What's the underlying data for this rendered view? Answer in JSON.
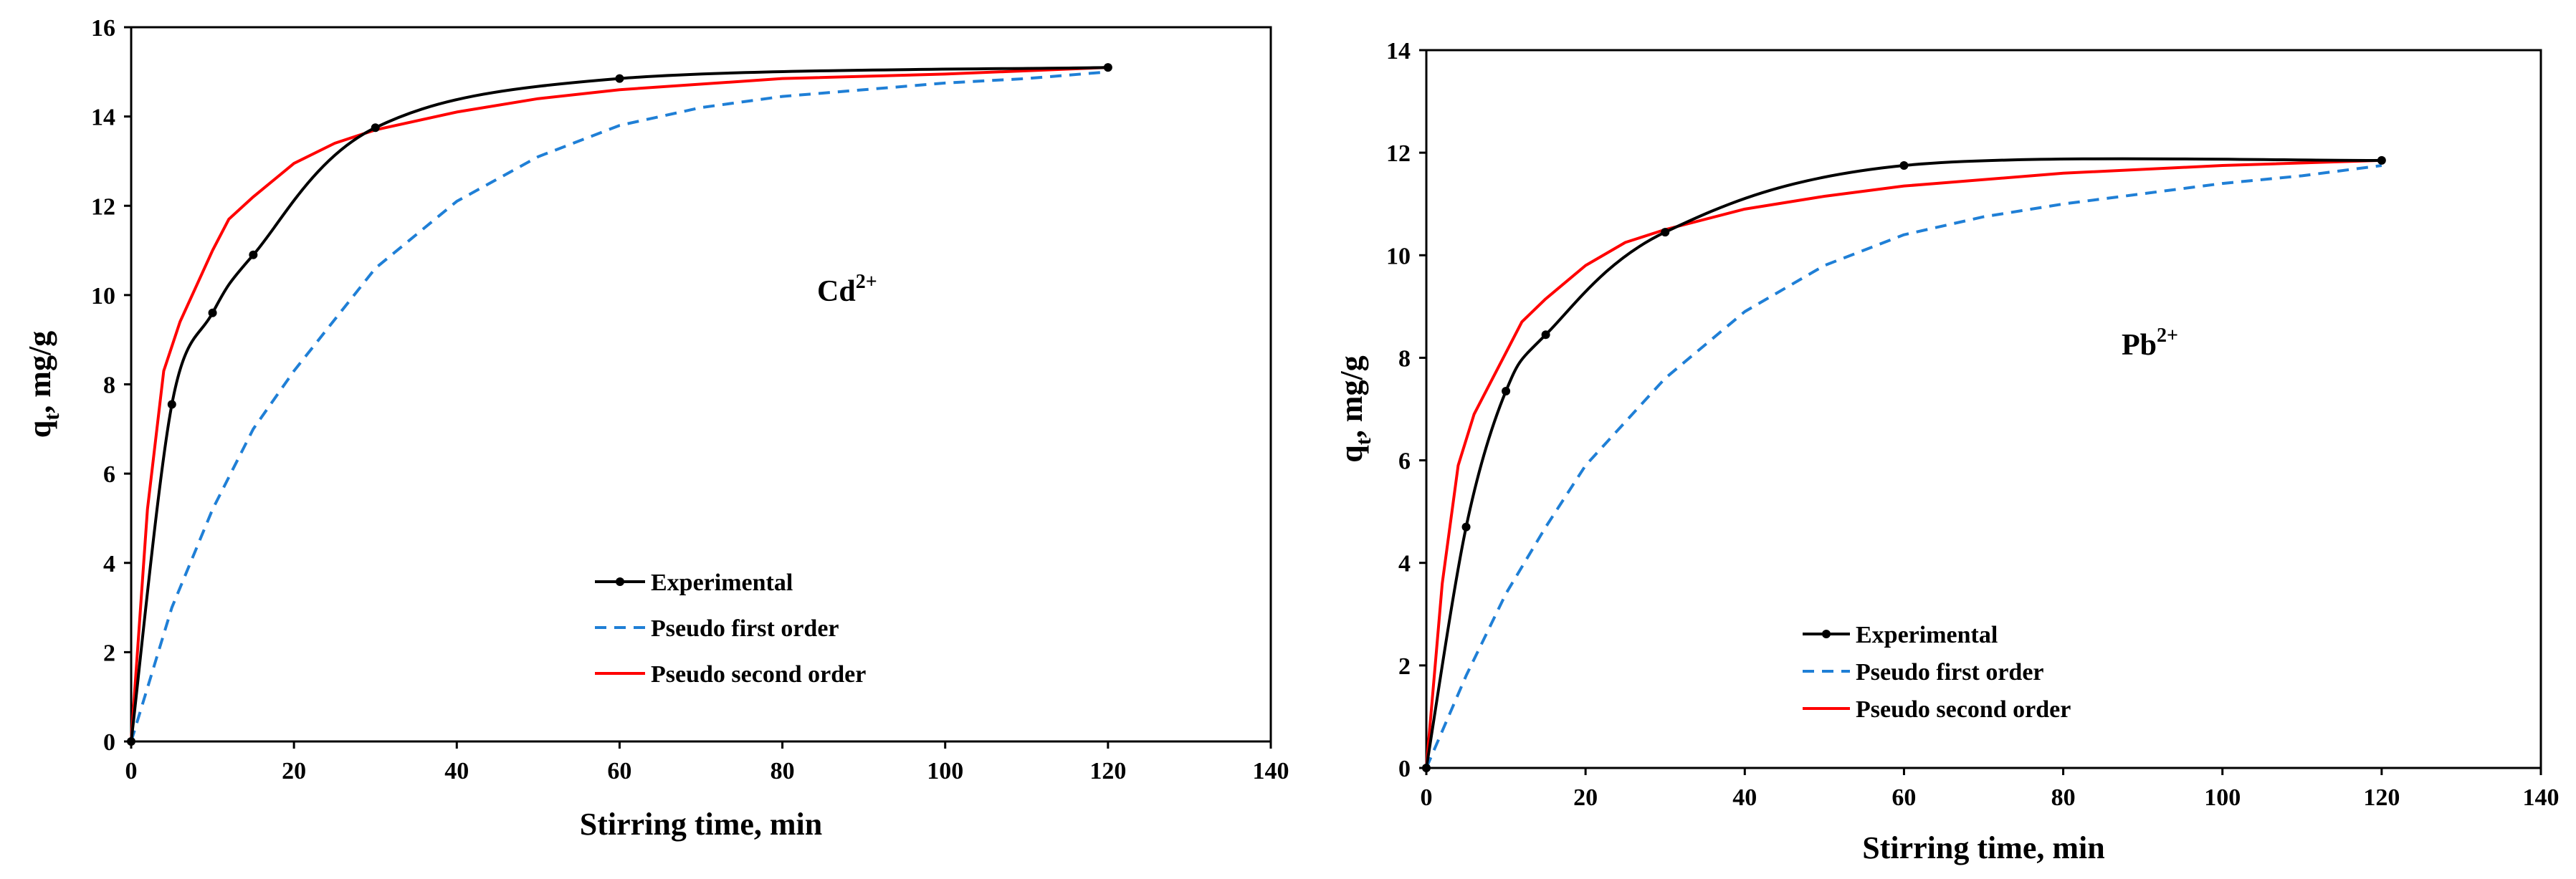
{
  "chart_data": [
    {
      "type": "line",
      "annotation": {
        "base": "Cd",
        "sup": "2+"
      },
      "xlabel": "Stirring time, min",
      "ylabel": {
        "base": "q",
        "sub": "t",
        "rest": ", mg/g"
      },
      "xlim": [
        0,
        140
      ],
      "ylim": [
        0,
        16
      ],
      "xticks": [
        "0",
        "20",
        "40",
        "60",
        "80",
        "100",
        "120",
        "140"
      ],
      "yticks": [
        "0",
        "2",
        "4",
        "6",
        "8",
        "10",
        "12",
        "14",
        "16"
      ],
      "legend_position": "lower-center",
      "series": [
        {
          "name": "Experimental",
          "color": "#000000",
          "style": "solid",
          "markers": true,
          "x": [
            0,
            5,
            10,
            15,
            30,
            60,
            120
          ],
          "y": [
            0,
            7.55,
            9.6,
            10.9,
            13.75,
            14.85,
            15.1
          ]
        },
        {
          "name": "Pseudo first order",
          "color": "#1f7fd6",
          "style": "dashed",
          "markers": false,
          "x": [
            0,
            5,
            10,
            15,
            20,
            30,
            40,
            50,
            60,
            70,
            80,
            90,
            100,
            110,
            120
          ],
          "y": [
            0,
            3.0,
            5.2,
            7.0,
            8.3,
            10.6,
            12.1,
            13.1,
            13.8,
            14.2,
            14.45,
            14.6,
            14.75,
            14.85,
            15.0
          ]
        },
        {
          "name": "Pseudo second order",
          "color": "#ff0000",
          "style": "solid",
          "markers": false,
          "x": [
            0,
            2,
            4,
            6,
            8,
            10,
            12,
            15,
            20,
            25,
            30,
            40,
            50,
            60,
            80,
            100,
            120
          ],
          "y": [
            0,
            5.2,
            8.3,
            9.4,
            10.2,
            11.0,
            11.7,
            12.2,
            12.95,
            13.4,
            13.7,
            14.1,
            14.4,
            14.6,
            14.85,
            14.95,
            15.1
          ]
        }
      ]
    },
    {
      "type": "line",
      "annotation": {
        "base": "Pb",
        "sup": "2+"
      },
      "xlabel": "Stirring time, min",
      "ylabel": {
        "base": "q",
        "sub": "t",
        "rest": ", mg/g"
      },
      "xlim": [
        0,
        140
      ],
      "ylim": [
        0,
        14
      ],
      "xticks": [
        "0",
        "20",
        "40",
        "60",
        "80",
        "100",
        "120",
        "140"
      ],
      "yticks": [
        "0",
        "2",
        "4",
        "6",
        "8",
        "10",
        "12",
        "14"
      ],
      "legend_position": "lower-left",
      "series": [
        {
          "name": "Experimental",
          "color": "#000000",
          "style": "solid",
          "markers": true,
          "x": [
            0,
            5,
            10,
            15,
            30,
            60,
            120
          ],
          "y": [
            0,
            4.7,
            7.35,
            8.45,
            10.45,
            11.75,
            11.85
          ]
        },
        {
          "name": "Pseudo first order",
          "color": "#1f7fd6",
          "style": "dashed",
          "markers": false,
          "x": [
            0,
            5,
            10,
            15,
            20,
            30,
            40,
            50,
            60,
            70,
            80,
            90,
            100,
            110,
            120
          ],
          "y": [
            0,
            1.8,
            3.4,
            4.7,
            5.9,
            7.6,
            8.9,
            9.8,
            10.4,
            10.75,
            11.0,
            11.2,
            11.4,
            11.55,
            11.75
          ]
        },
        {
          "name": "Pseudo second order",
          "color": "#ff0000",
          "style": "solid",
          "markers": false,
          "x": [
            0,
            2,
            4,
            6,
            8,
            10,
            12,
            15,
            20,
            25,
            30,
            40,
            50,
            60,
            80,
            100,
            120
          ],
          "y": [
            0,
            3.6,
            5.9,
            6.9,
            7.5,
            8.1,
            8.7,
            9.15,
            9.8,
            10.25,
            10.5,
            10.9,
            11.15,
            11.35,
            11.6,
            11.75,
            11.85
          ]
        }
      ]
    }
  ]
}
